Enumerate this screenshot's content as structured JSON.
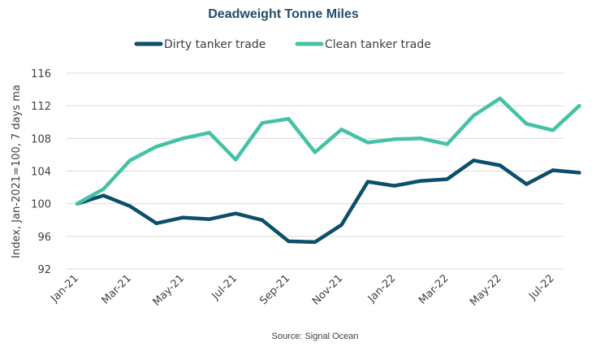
{
  "chart_data": {
    "type": "line",
    "title": "Deadweight Tonne Miles",
    "ylabel": "Index, Jan-2021=100, 7 days ma",
    "xlabel": "",
    "source": "Source: Signal Ocean",
    "ylim": [
      92,
      116
    ],
    "yticks": [
      92,
      96,
      100,
      104,
      108,
      112,
      116
    ],
    "grid": "horizontal",
    "legend_position": "top-center",
    "x": [
      "Jan-21",
      "Feb-21",
      "Mar-21",
      "Apr-21",
      "May-21",
      "Jun-21",
      "Jul-21",
      "Aug-21",
      "Sep-21",
      "Oct-21",
      "Nov-21",
      "Dec-21",
      "Jan-22",
      "Feb-22",
      "Mar-22",
      "Apr-22",
      "May-22",
      "Jun-22",
      "Jul-22",
      "Aug-22"
    ],
    "xtick_labels": [
      "Jan-21",
      "Mar-21",
      "May-21",
      "Jul-21",
      "Sep-21",
      "Nov-21",
      "Jan-22",
      "Mar-22",
      "May-22",
      "Jul-22"
    ],
    "series": [
      {
        "name": "Dirty tanker trade",
        "color": "#0b4f6c",
        "values": [
          100.0,
          101.0,
          99.7,
          97.6,
          98.3,
          98.1,
          98.8,
          98.0,
          95.4,
          95.3,
          97.4,
          102.7,
          102.2,
          102.8,
          103.0,
          105.3,
          104.7,
          102.4,
          104.1,
          103.8
        ]
      },
      {
        "name": "Clean tanker trade",
        "color": "#45c2a6",
        "values": [
          100.0,
          101.8,
          105.3,
          107.0,
          108.0,
          108.7,
          105.4,
          109.9,
          110.4,
          106.3,
          109.1,
          107.5,
          107.9,
          108.0,
          107.3,
          110.8,
          112.9,
          109.8,
          109.0,
          112.0
        ]
      }
    ]
  }
}
